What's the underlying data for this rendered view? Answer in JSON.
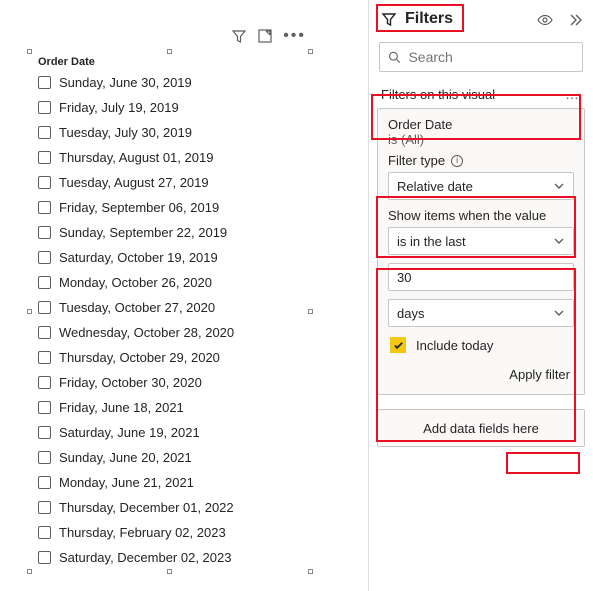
{
  "colors": {
    "accent": "#f2c811",
    "highlight": "#e81123",
    "border": "#c8c6c4",
    "text": "#252423",
    "muted": "#605e5c",
    "card_bg": "#faf9f8"
  },
  "visual_toolbar": {
    "filter_icon": "filter-icon",
    "focus_icon": "focus-mode-icon",
    "more_icon": "more-options"
  },
  "slicer": {
    "header": "Order Date",
    "items": [
      "Sunday, June 30, 2019",
      "Friday, July 19, 2019",
      "Tuesday, July 30, 2019",
      "Thursday, August 01, 2019",
      "Tuesday, August 27, 2019",
      "Friday, September 06, 2019",
      "Sunday, September 22, 2019",
      "Saturday, October 19, 2019",
      "Monday, October 26, 2020",
      "Tuesday, October 27, 2020",
      "Wednesday, October 28, 2020",
      "Thursday, October 29, 2020",
      "Friday, October 30, 2020",
      "Friday, June 18, 2021",
      "Saturday, June 19, 2021",
      "Sunday, June 20, 2021",
      "Monday, June 21, 2021",
      "Thursday, December 01, 2022",
      "Thursday, February 02, 2023",
      "Saturday, December 02, 2023"
    ]
  },
  "filter_pane": {
    "title": "Filters",
    "search_placeholder": "Search",
    "section_title": "Filters on this visual",
    "card": {
      "field": "Order Date",
      "restatement": "is (All)",
      "filter_type_label": "Filter type",
      "filter_type_value": "Relative date",
      "show_items_label": "Show items when the value",
      "operator": "is in the last",
      "value": "30",
      "unit": "days",
      "include_today_label": "Include today",
      "include_today_checked": true,
      "apply_label": "Apply filter"
    },
    "add_zone_label": "Add data fields here"
  }
}
